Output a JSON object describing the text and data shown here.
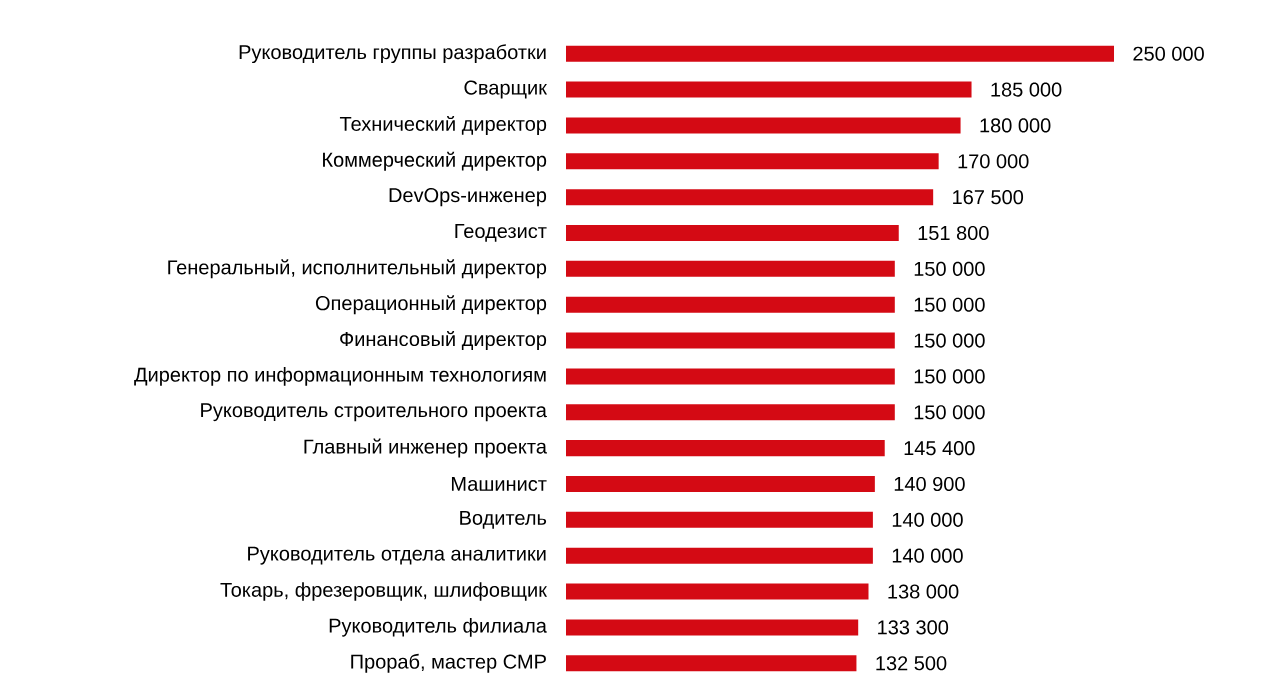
{
  "chart_data": {
    "type": "bar",
    "orientation": "horizontal",
    "color": "#d40a14",
    "categories": [
      "Руководитель группы разработки",
      "Сварщик",
      "Технический директор",
      "Коммерческий директор",
      "DevOps-инженер",
      "Геодезист",
      "Генеральный, исполнительный директор",
      "Операционный директор",
      "Финансовый директор",
      "Директор по информационным  технологиям",
      "Руководитель строительного проекта",
      "Главный инженер проекта",
      "Машинист",
      "Водитель",
      "Руководитель отдела аналитики",
      "Токарь, фрезеровщик, шлифовщик",
      "Руководитель филиала",
      "Прораб, мастер СМР"
    ],
    "values": [
      250000,
      185000,
      180000,
      170000,
      167500,
      151800,
      150000,
      150000,
      150000,
      150000,
      150000,
      145400,
      140900,
      140000,
      140000,
      138000,
      133300,
      132500
    ],
    "value_labels": [
      "250 000",
      "185 000",
      "180 000",
      "170 000",
      "167 500",
      "151 800",
      "150 000",
      "150 000",
      "150 000",
      "150 000",
      "150 000",
      "145 400",
      "140 900",
      "140 000",
      "140 000",
      "138 000",
      "133 300",
      "132 500"
    ]
  }
}
